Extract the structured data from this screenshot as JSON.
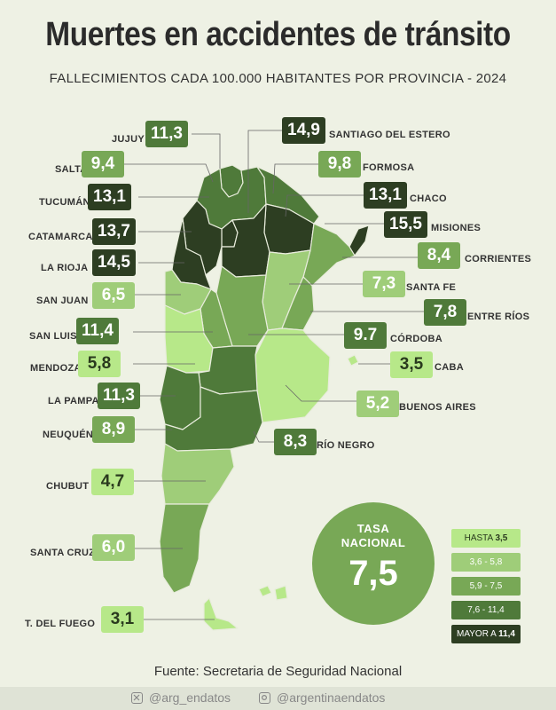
{
  "title": "Muertes en accidentes de tránsito",
  "subtitle": "FALLECIMIENTOS CADA 100.000 HABITANTES POR PROVINCIA - 2024",
  "provinces": [
    {
      "name": "JUJUY",
      "value": "11,3"
    },
    {
      "name": "SALTA",
      "value": "9,4"
    },
    {
      "name": "TUCUMÁN",
      "value": "13,1"
    },
    {
      "name": "CATAMARCA",
      "value": "13,7"
    },
    {
      "name": "LA RIOJA",
      "value": "14,5"
    },
    {
      "name": "SAN JUAN",
      "value": "6,5"
    },
    {
      "name": "SAN LUIS",
      "value": "11,4"
    },
    {
      "name": "MENDOZA",
      "value": "5,8"
    },
    {
      "name": "LA PAMPA",
      "value": "11,3"
    },
    {
      "name": "NEUQUÉN",
      "value": "8,9"
    },
    {
      "name": "CHUBUT",
      "value": "4,7"
    },
    {
      "name": "SANTA CRUZ",
      "value": "6,0"
    },
    {
      "name": "T. DEL FUEGO",
      "value": "3,1"
    },
    {
      "name": "SANTIAGO  DEL ESTERO",
      "value": "14,9"
    },
    {
      "name": "FORMOSA",
      "value": "9,8"
    },
    {
      "name": "CHACO",
      "value": "13,1"
    },
    {
      "name": "MISIONES",
      "value": "15,5"
    },
    {
      "name": "CORRIENTES",
      "value": "8,4"
    },
    {
      "name": "SANTA FE",
      "value": "7,3"
    },
    {
      "name": "ENTRE RÍOS",
      "value": "7,8"
    },
    {
      "name": "CÓRDOBA",
      "value": "9.7"
    },
    {
      "name": "CABA",
      "value": "3,5"
    },
    {
      "name": "BUENOS AIRES",
      "value": "5,2"
    },
    {
      "name": "RÍO NEGRO",
      "value": "8,3"
    }
  ],
  "national": {
    "label_line1": "TASA",
    "label_line2": "NACIONAL",
    "value": "7,5"
  },
  "legend": [
    {
      "prefix": "HASTA ",
      "bold": "3,5",
      "color": "#b7e889"
    },
    {
      "prefix": "3,6 - 5,8",
      "bold": "",
      "color": "#9fcd79"
    },
    {
      "prefix": "5,9 - 7,5",
      "bold": "",
      "color": "#78a856"
    },
    {
      "prefix": "7,6 - 11,4",
      "bold": "",
      "color": "#4f7a3a"
    },
    {
      "prefix": "MAYOR A ",
      "bold": "11,4",
      "color": "#2d3e22"
    }
  ],
  "source": "Fuente: Secretaria de Seguridad Nacional",
  "social": {
    "twitter": "@arg_endatos",
    "instagram": "@argentinaendatos",
    "twitter_icon": "x-icon",
    "instagram_icon": "instagram-icon"
  }
}
